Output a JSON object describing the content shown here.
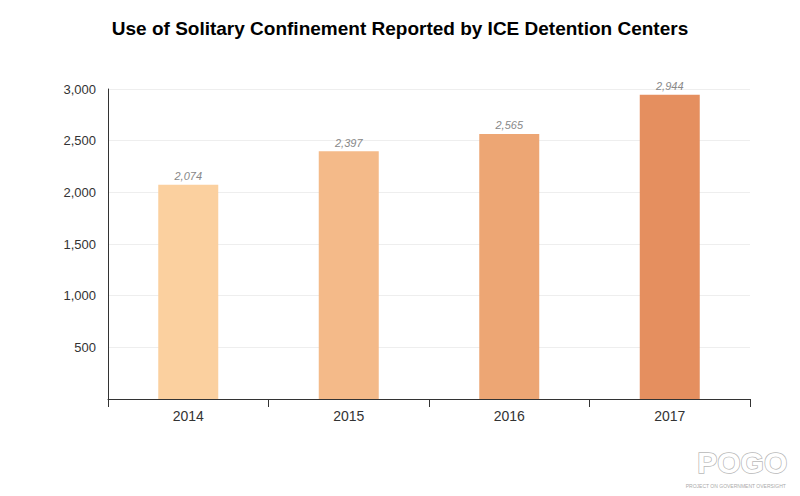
{
  "chart_data": {
    "type": "bar",
    "title": "Use of Solitary Confinement Reported by ICE Detention Centers",
    "categories": [
      "2014",
      "2015",
      "2016",
      "2017"
    ],
    "values": [
      2074,
      2397,
      2565,
      2944
    ],
    "value_labels": [
      "2,074",
      "2,397",
      "2,565",
      "2,944"
    ],
    "colors": [
      "#fbd09f",
      "#f4ba89",
      "#eda674",
      "#e58f5f"
    ],
    "ylim": [
      0,
      3000
    ],
    "yticks": [
      500,
      {
        "value": 1000,
        "label": "1,000"
      },
      {
        "value": 1500,
        "label": "1,500"
      },
      {
        "value": 2000,
        "label": "2,000"
      },
      {
        "value": 2500,
        "label": "2,500"
      },
      {
        "value": 3000,
        "label": "3,000"
      }
    ],
    "grid": true,
    "data_labels": true,
    "annotations": [
      "POGO",
      "PROJECT ON GOVERNMENT OVERSIGHT"
    ]
  }
}
